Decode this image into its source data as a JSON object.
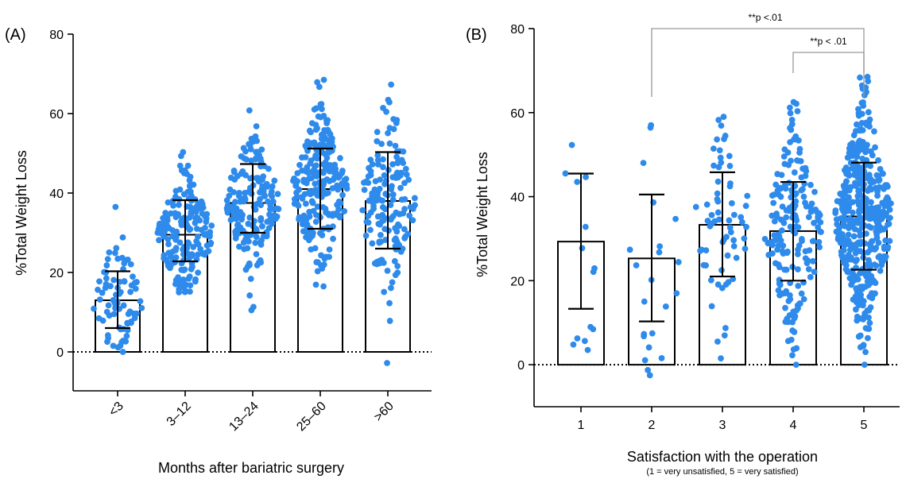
{
  "chart_data": [
    {
      "type": "bar",
      "panel_label": "(A)",
      "title": "",
      "xlabel": "Months after bariatric surgery",
      "ylabel": "%Total Weight Loss",
      "categories": [
        "<3",
        "3–12",
        "13–24",
        "25–60",
        ">60"
      ],
      "values": [
        13,
        29.5,
        37.5,
        41,
        38
      ],
      "error_low": [
        6,
        22.8,
        30,
        31,
        26
      ],
      "error_high": [
        20.3,
        38.2,
        47.3,
        51.2,
        50.3
      ],
      "ylim": [
        -10,
        80
      ],
      "yticks": [
        0,
        20,
        40,
        60,
        80
      ],
      "point_counts": [
        80,
        190,
        180,
        230,
        160
      ],
      "point_ranges": [
        [
          0,
          36.5
        ],
        [
          15,
          50.3
        ],
        [
          10.5,
          60.8
        ],
        [
          16.5,
          68.5
        ],
        [
          -2.8,
          67.3
        ]
      ],
      "zero_line": "dotted",
      "grid": false,
      "colors": {
        "points": "#2E8BEB",
        "bars": "#000000"
      }
    },
    {
      "type": "bar",
      "panel_label": "(B)",
      "title": "",
      "xlabel": "Satisfaction with the operation",
      "xsublabel": "(1 = very unsatisfied, 5 = very satisfied)",
      "ylabel": "%Total Weight Loss",
      "categories": [
        "1",
        "2",
        "3",
        "4",
        "5"
      ],
      "values": [
        29.3,
        25.3,
        33.3,
        31.8,
        35.3
      ],
      "error_low": [
        13.3,
        10.3,
        21,
        20,
        22.6
      ],
      "error_high": [
        45.5,
        40.5,
        45.8,
        43.5,
        48.1
      ],
      "ylim": [
        -10,
        80
      ],
      "yticks": [
        0,
        20,
        40,
        60,
        80
      ],
      "point_counts": [
        14,
        22,
        65,
        190,
        430
      ],
      "point_ranges": [
        [
          3.5,
          52.3
        ],
        [
          -2.5,
          57
        ],
        [
          1.5,
          59
        ],
        [
          0,
          62.5
        ],
        [
          0,
          68.5
        ]
      ],
      "zero_line": "dotted",
      "grid": false,
      "colors": {
        "points": "#2E8BEB",
        "bars": "#000000"
      },
      "annotations": [
        {
          "from": "2",
          "to": "5",
          "label": "**p <.01"
        },
        {
          "from": "4",
          "to": "5",
          "label": "**p < .01"
        }
      ]
    }
  ]
}
